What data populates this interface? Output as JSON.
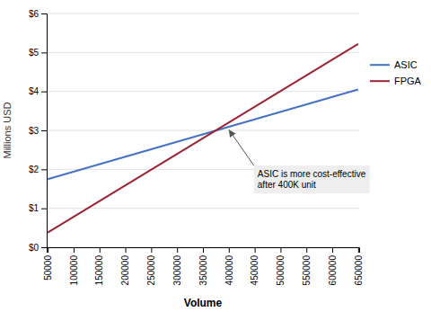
{
  "chart_data": {
    "type": "line",
    "xlabel": "Volume",
    "ylabel": "Millions USD",
    "x": [
      50000,
      650000
    ],
    "series": [
      {
        "name": "ASIC",
        "color": "#4472C4",
        "values": [
          1.75,
          4.05
        ]
      },
      {
        "name": "FPGA",
        "color": "#9B2335",
        "values": [
          0.38,
          5.22
        ]
      }
    ],
    "xlim": [
      48000,
      652000
    ],
    "xticks": [
      50000,
      100000,
      150000,
      200000,
      250000,
      300000,
      350000,
      400000,
      450000,
      500000,
      550000,
      600000,
      650000
    ],
    "ylim": [
      0,
      6
    ],
    "yticks": [
      {
        "value": 0,
        "label": "$0"
      },
      {
        "value": 1,
        "label": "$1"
      },
      {
        "value": 2,
        "label": "$2"
      },
      {
        "value": 3,
        "label": "$3"
      },
      {
        "value": 4,
        "label": "$4"
      },
      {
        "value": 5,
        "label": "$5"
      },
      {
        "value": 6,
        "label": "$6"
      }
    ],
    "grid": "y",
    "legend": "right",
    "annotations": [
      {
        "text": "ASIC is more cost-effective\nafter 400K unit",
        "x": 400000,
        "y": 3.02
      }
    ]
  }
}
